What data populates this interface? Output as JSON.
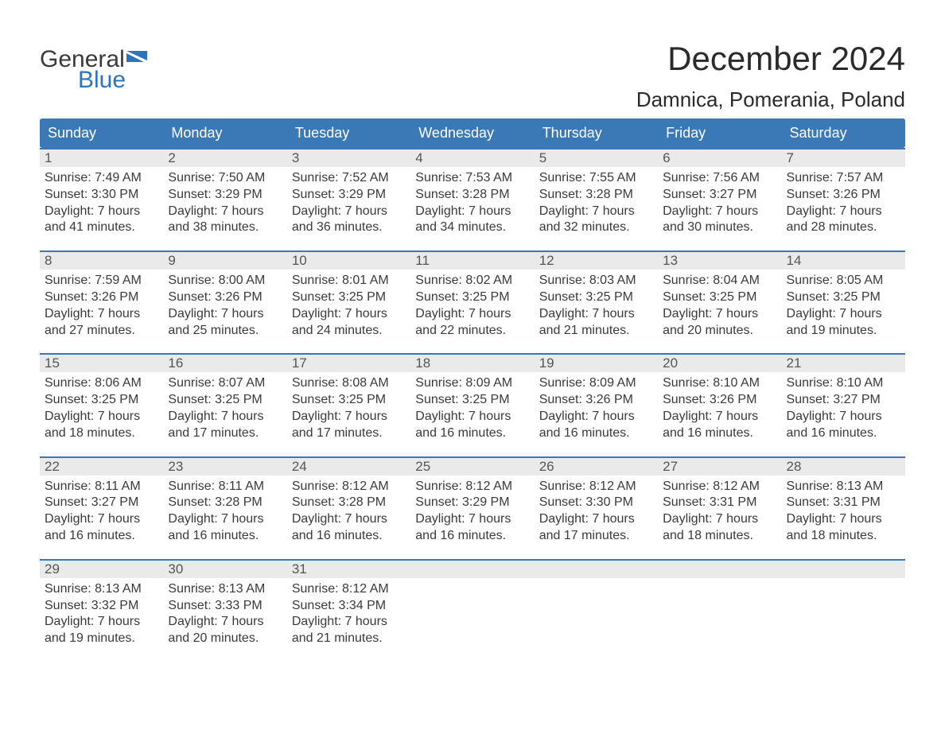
{
  "logo": {
    "word1": "General",
    "word2": "Blue",
    "brand_color": "#2d75bb"
  },
  "title": "December 2024",
  "location": "Damnica, Pomerania, Poland",
  "colors": {
    "header_bg": "#3a78b6",
    "header_text": "#ffffff",
    "daynum_bg": "#eaeaea",
    "week_border": "#3a78b6",
    "text": "#3a3a3a",
    "background": "#ffffff"
  },
  "typography": {
    "title_fontsize": 42,
    "location_fontsize": 26,
    "header_fontsize": 18,
    "body_fontsize": 16
  },
  "day_headers": [
    "Sunday",
    "Monday",
    "Tuesday",
    "Wednesday",
    "Thursday",
    "Friday",
    "Saturday"
  ],
  "weeks": [
    [
      {
        "n": "1",
        "sr": "Sunrise: 7:49 AM",
        "ss": "Sunset: 3:30 PM",
        "d1": "Daylight: 7 hours",
        "d2": "and 41 minutes."
      },
      {
        "n": "2",
        "sr": "Sunrise: 7:50 AM",
        "ss": "Sunset: 3:29 PM",
        "d1": "Daylight: 7 hours",
        "d2": "and 38 minutes."
      },
      {
        "n": "3",
        "sr": "Sunrise: 7:52 AM",
        "ss": "Sunset: 3:29 PM",
        "d1": "Daylight: 7 hours",
        "d2": "and 36 minutes."
      },
      {
        "n": "4",
        "sr": "Sunrise: 7:53 AM",
        "ss": "Sunset: 3:28 PM",
        "d1": "Daylight: 7 hours",
        "d2": "and 34 minutes."
      },
      {
        "n": "5",
        "sr": "Sunrise: 7:55 AM",
        "ss": "Sunset: 3:28 PM",
        "d1": "Daylight: 7 hours",
        "d2": "and 32 minutes."
      },
      {
        "n": "6",
        "sr": "Sunrise: 7:56 AM",
        "ss": "Sunset: 3:27 PM",
        "d1": "Daylight: 7 hours",
        "d2": "and 30 minutes."
      },
      {
        "n": "7",
        "sr": "Sunrise: 7:57 AM",
        "ss": "Sunset: 3:26 PM",
        "d1": "Daylight: 7 hours",
        "d2": "and 28 minutes."
      }
    ],
    [
      {
        "n": "8",
        "sr": "Sunrise: 7:59 AM",
        "ss": "Sunset: 3:26 PM",
        "d1": "Daylight: 7 hours",
        "d2": "and 27 minutes."
      },
      {
        "n": "9",
        "sr": "Sunrise: 8:00 AM",
        "ss": "Sunset: 3:26 PM",
        "d1": "Daylight: 7 hours",
        "d2": "and 25 minutes."
      },
      {
        "n": "10",
        "sr": "Sunrise: 8:01 AM",
        "ss": "Sunset: 3:25 PM",
        "d1": "Daylight: 7 hours",
        "d2": "and 24 minutes."
      },
      {
        "n": "11",
        "sr": "Sunrise: 8:02 AM",
        "ss": "Sunset: 3:25 PM",
        "d1": "Daylight: 7 hours",
        "d2": "and 22 minutes."
      },
      {
        "n": "12",
        "sr": "Sunrise: 8:03 AM",
        "ss": "Sunset: 3:25 PM",
        "d1": "Daylight: 7 hours",
        "d2": "and 21 minutes."
      },
      {
        "n": "13",
        "sr": "Sunrise: 8:04 AM",
        "ss": "Sunset: 3:25 PM",
        "d1": "Daylight: 7 hours",
        "d2": "and 20 minutes."
      },
      {
        "n": "14",
        "sr": "Sunrise: 8:05 AM",
        "ss": "Sunset: 3:25 PM",
        "d1": "Daylight: 7 hours",
        "d2": "and 19 minutes."
      }
    ],
    [
      {
        "n": "15",
        "sr": "Sunrise: 8:06 AM",
        "ss": "Sunset: 3:25 PM",
        "d1": "Daylight: 7 hours",
        "d2": "and 18 minutes."
      },
      {
        "n": "16",
        "sr": "Sunrise: 8:07 AM",
        "ss": "Sunset: 3:25 PM",
        "d1": "Daylight: 7 hours",
        "d2": "and 17 minutes."
      },
      {
        "n": "17",
        "sr": "Sunrise: 8:08 AM",
        "ss": "Sunset: 3:25 PM",
        "d1": "Daylight: 7 hours",
        "d2": "and 17 minutes."
      },
      {
        "n": "18",
        "sr": "Sunrise: 8:09 AM",
        "ss": "Sunset: 3:25 PM",
        "d1": "Daylight: 7 hours",
        "d2": "and 16 minutes."
      },
      {
        "n": "19",
        "sr": "Sunrise: 8:09 AM",
        "ss": "Sunset: 3:26 PM",
        "d1": "Daylight: 7 hours",
        "d2": "and 16 minutes."
      },
      {
        "n": "20",
        "sr": "Sunrise: 8:10 AM",
        "ss": "Sunset: 3:26 PM",
        "d1": "Daylight: 7 hours",
        "d2": "and 16 minutes."
      },
      {
        "n": "21",
        "sr": "Sunrise: 8:10 AM",
        "ss": "Sunset: 3:27 PM",
        "d1": "Daylight: 7 hours",
        "d2": "and 16 minutes."
      }
    ],
    [
      {
        "n": "22",
        "sr": "Sunrise: 8:11 AM",
        "ss": "Sunset: 3:27 PM",
        "d1": "Daylight: 7 hours",
        "d2": "and 16 minutes."
      },
      {
        "n": "23",
        "sr": "Sunrise: 8:11 AM",
        "ss": "Sunset: 3:28 PM",
        "d1": "Daylight: 7 hours",
        "d2": "and 16 minutes."
      },
      {
        "n": "24",
        "sr": "Sunrise: 8:12 AM",
        "ss": "Sunset: 3:28 PM",
        "d1": "Daylight: 7 hours",
        "d2": "and 16 minutes."
      },
      {
        "n": "25",
        "sr": "Sunrise: 8:12 AM",
        "ss": "Sunset: 3:29 PM",
        "d1": "Daylight: 7 hours",
        "d2": "and 16 minutes."
      },
      {
        "n": "26",
        "sr": "Sunrise: 8:12 AM",
        "ss": "Sunset: 3:30 PM",
        "d1": "Daylight: 7 hours",
        "d2": "and 17 minutes."
      },
      {
        "n": "27",
        "sr": "Sunrise: 8:12 AM",
        "ss": "Sunset: 3:31 PM",
        "d1": "Daylight: 7 hours",
        "d2": "and 18 minutes."
      },
      {
        "n": "28",
        "sr": "Sunrise: 8:13 AM",
        "ss": "Sunset: 3:31 PM",
        "d1": "Daylight: 7 hours",
        "d2": "and 18 minutes."
      }
    ],
    [
      {
        "n": "29",
        "sr": "Sunrise: 8:13 AM",
        "ss": "Sunset: 3:32 PM",
        "d1": "Daylight: 7 hours",
        "d2": "and 19 minutes."
      },
      {
        "n": "30",
        "sr": "Sunrise: 8:13 AM",
        "ss": "Sunset: 3:33 PM",
        "d1": "Daylight: 7 hours",
        "d2": "and 20 minutes."
      },
      {
        "n": "31",
        "sr": "Sunrise: 8:12 AM",
        "ss": "Sunset: 3:34 PM",
        "d1": "Daylight: 7 hours",
        "d2": "and 21 minutes."
      },
      {
        "empty": true
      },
      {
        "empty": true
      },
      {
        "empty": true
      },
      {
        "empty": true
      }
    ]
  ]
}
